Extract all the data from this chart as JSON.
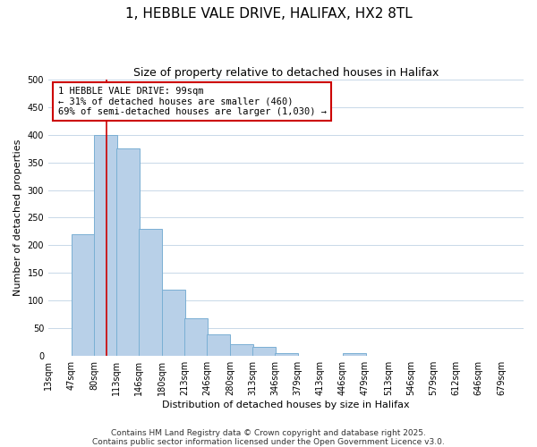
{
  "title": "1, HEBBLE VALE DRIVE, HALIFAX, HX2 8TL",
  "subtitle": "Size of property relative to detached houses in Halifax",
  "xlabel": "Distribution of detached houses by size in Halifax",
  "ylabel": "Number of detached properties",
  "bar_color": "#b8d0e8",
  "bar_edge_color": "#7aafd4",
  "background_color": "#ffffff",
  "grid_color": "#c8d8e8",
  "bins": [
    13,
    47,
    80,
    113,
    146,
    180,
    213,
    246,
    280,
    313,
    346,
    379,
    413,
    446,
    479,
    513,
    546,
    579,
    612,
    646,
    679,
    712
  ],
  "bin_labels": [
    "13sqm",
    "47sqm",
    "80sqm",
    "113sqm",
    "146sqm",
    "180sqm",
    "213sqm",
    "246sqm",
    "280sqm",
    "313sqm",
    "346sqm",
    "379sqm",
    "413sqm",
    "446sqm",
    "479sqm",
    "513sqm",
    "546sqm",
    "579sqm",
    "612sqm",
    "646sqm",
    "679sqm"
  ],
  "values": [
    0,
    220,
    400,
    375,
    230,
    120,
    68,
    38,
    20,
    15,
    5,
    0,
    0,
    5,
    0,
    0,
    0,
    0,
    0,
    0,
    0
  ],
  "property_size": 99,
  "property_line_color": "#cc0000",
  "annotation_text": "1 HEBBLE VALE DRIVE: 99sqm\n← 31% of detached houses are smaller (460)\n69% of semi-detached houses are larger (1,030) →",
  "annotation_box_color": "#ffffff",
  "annotation_box_edge_color": "#cc0000",
  "ylim": [
    0,
    500
  ],
  "yticks": [
    0,
    50,
    100,
    150,
    200,
    250,
    300,
    350,
    400,
    450,
    500
  ],
  "footer_line1": "Contains HM Land Registry data © Crown copyright and database right 2025.",
  "footer_line2": "Contains public sector information licensed under the Open Government Licence v3.0.",
  "title_fontsize": 11,
  "subtitle_fontsize": 9,
  "axis_label_fontsize": 8,
  "tick_fontsize": 7,
  "footer_fontsize": 6.5,
  "annotation_fontsize": 7.5
}
